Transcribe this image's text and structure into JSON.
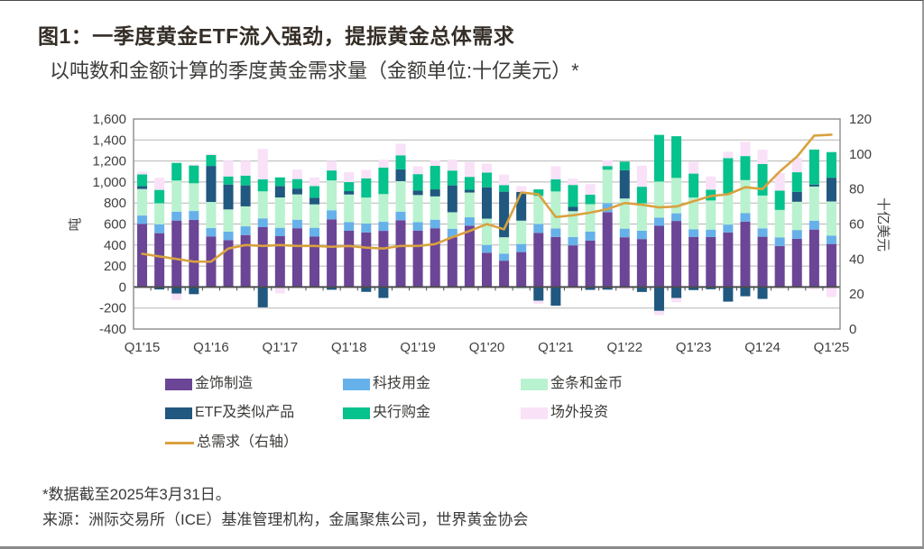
{
  "header": {
    "title": "图1：一季度黄金ETF流入强劲，提振黄金总体需求",
    "subtitle": "以吨数和金额计算的季度黄金需求量（金额单位:十亿美元）*"
  },
  "chart_data": {
    "type": "bar",
    "subtype": "stacked-bar-with-line",
    "title": "图1：一季度黄金ETF流入强劲，提振黄金总体需求",
    "subtitle": "以吨数和金额计算的季度黄金需求量（金额单位:十亿美元）*",
    "grid": true,
    "legend_position": "bottom",
    "quarters": [
      "Q1'15",
      "Q2'15",
      "Q3'15",
      "Q4'15",
      "Q1'16",
      "Q2'16",
      "Q3'16",
      "Q4'16",
      "Q1'17",
      "Q2'17",
      "Q3'17",
      "Q4'17",
      "Q1'18",
      "Q2'18",
      "Q3'18",
      "Q4'18",
      "Q1'19",
      "Q2'19",
      "Q3'19",
      "Q4'19",
      "Q1'20",
      "Q2'20",
      "Q3'20",
      "Q4'20",
      "Q1'21",
      "Q2'21",
      "Q3'21",
      "Q4'21",
      "Q1'22",
      "Q2'22",
      "Q3'22",
      "Q4'22",
      "Q1'23",
      "Q2'23",
      "Q3'23",
      "Q4'23",
      "Q1'24",
      "Q2'24",
      "Q3'24",
      "Q4'24",
      "Q1'25"
    ],
    "x_tick_labels": [
      "Q1'15",
      "Q1'16",
      "Q1'17",
      "Q1'18",
      "Q1'19",
      "Q1'20",
      "Q1'21",
      "Q1'22",
      "Q1'23",
      "Q1'24",
      "Q1'25"
    ],
    "left_axis": {
      "label": "吨",
      "min": -400,
      "max": 1600,
      "ticks": [
        1600,
        1400,
        1200,
        1000,
        800,
        600,
        400,
        200,
        0,
        -200,
        -400
      ],
      "tick_labels": [
        "1,600",
        "1,400",
        "1,200",
        "1,000",
        "800",
        "600",
        "400",
        "200",
        "0",
        "-200",
        "-400"
      ]
    },
    "right_axis": {
      "label": "十亿美元",
      "min": 0,
      "max": 120,
      "ticks": [
        120,
        100,
        80,
        60,
        40,
        20,
        0
      ],
      "tick_labels": [
        "120",
        "100",
        "80",
        "60",
        "40",
        "20",
        "0"
      ]
    },
    "series": [
      {
        "name": "金饰制造",
        "color": "#6B4596",
        "values": [
          601,
          513,
          633,
          640,
          482,
          447,
          495,
          570,
          484,
          560,
          480,
          645,
          536,
          520,
          535,
          636,
          538,
          560,
          474,
          584,
          327,
          251,
          333,
          516,
          477,
          397,
          443,
          713,
          474,
          457,
          583,
          629,
          478,
          476,
          520,
          623,
          479,
          391,
          459,
          547,
          410
        ]
      },
      {
        "name": "科技用金",
        "color": "#66B1E9",
        "values": [
          80,
          84,
          85,
          84,
          79,
          81,
          83,
          84,
          80,
          81,
          84,
          86,
          83,
          84,
          86,
          82,
          80,
          81,
          81,
          80,
          74,
          67,
          77,
          84,
          81,
          80,
          84,
          86,
          82,
          79,
          77,
          73,
          72,
          71,
          75,
          82,
          80,
          82,
          84,
          85,
          80
        ]
      },
      {
        "name": "金条和金币",
        "color": "#B9F2CF",
        "values": [
          253,
          201,
          296,
          264,
          249,
          211,
          190,
          257,
          289,
          241,
          223,
          284,
          262,
          248,
          264,
          290,
          258,
          222,
          157,
          236,
          250,
          156,
          222,
          268,
          352,
          245,
          262,
          318,
          287,
          261,
          344,
          337,
          302,
          277,
          296,
          313,
          312,
          261,
          269,
          325,
          325
        ]
      },
      {
        "name": "ETF及类似产品",
        "color": "#20587F",
        "values": [
          26,
          -23,
          -63,
          -68,
          343,
          237,
          200,
          -193,
          109,
          56,
          64,
          -26,
          32,
          -46,
          -104,
          112,
          42,
          67,
          256,
          26,
          299,
          434,
          273,
          -130,
          -178,
          41,
          -27,
          -25,
          269,
          -47,
          -227,
          -105,
          -29,
          -21,
          -139,
          -88,
          -113,
          -7,
          95,
          19,
          226
        ]
      },
      {
        "name": "央行购金",
        "color": "#06C28C",
        "values": [
          112,
          127,
          168,
          169,
          104,
          77,
          93,
          114,
          82,
          90,
          111,
          95,
          86,
          183,
          253,
          134,
          157,
          224,
          141,
          123,
          140,
          63,
          -10,
          62,
          115,
          209,
          91,
          35,
          82,
          158,
          445,
          397,
          228,
          103,
          337,
          229,
          300,
          184,
          186,
          333,
          244
        ]
      },
      {
        "name": "场外投资",
        "color": "#F9E1F8",
        "values": [
          25,
          115,
          -60,
          10,
          10,
          150,
          140,
          290,
          -60,
          90,
          80,
          90,
          95,
          80,
          75,
          110,
          75,
          50,
          105,
          140,
          85,
          100,
          55,
          -30,
          125,
          60,
          100,
          55,
          -20,
          200,
          -40,
          -40,
          110,
          125,
          60,
          135,
          136,
          166,
          137,
          -21,
          -95
        ]
      }
    ],
    "line_series": {
      "name": "总需求（右轴）",
      "color": "#D9A23F",
      "axis": "right",
      "values": [
        43,
        41.5,
        40,
        38.5,
        38.5,
        46,
        48,
        47.5,
        48,
        47.5,
        47.5,
        47,
        47.5,
        46.5,
        46,
        47.5,
        47.5,
        48.5,
        52.5,
        56,
        60,
        57,
        78,
        77,
        64,
        65,
        66.5,
        68.5,
        72,
        71,
        69.5,
        70,
        73,
        76,
        77,
        81,
        80,
        90,
        98.5,
        110.5,
        111
      ]
    }
  },
  "footnotes": {
    "note": "*数据截至2025年3月31日。",
    "source": "来源：洲际交易所（ICE）基准管理机构，金属聚焦公司，世界黄金协会"
  }
}
